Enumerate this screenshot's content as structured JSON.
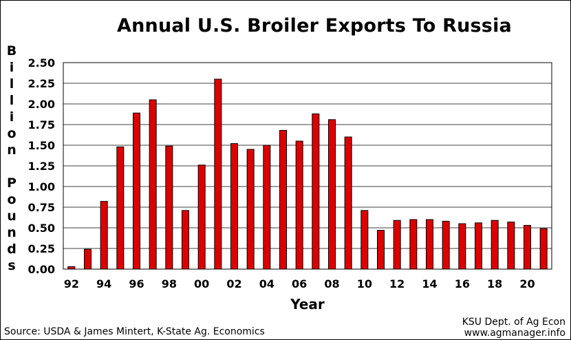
{
  "credit": {
    "line1": "KSU Dept. of Ag Econ",
    "line2": "www.agmanager.info"
  },
  "source": "Source: USDA & James Mintert, K-State Ag. Economics",
  "chart_data": {
    "type": "bar",
    "title": "Annual U.S. Broiler Exports To Russia",
    "xlabel": "Year",
    "ylabel": "Billion Pounds",
    "ylabel_words": [
      "Billion",
      "Pounds"
    ],
    "ylim": [
      0,
      2.5
    ],
    "yticks": [
      "0.00",
      "0.25",
      "0.50",
      "0.75",
      "1.00",
      "1.25",
      "1.50",
      "1.75",
      "2.00",
      "2.25",
      "2.50"
    ],
    "grid": true,
    "bar_color": "#dd0000",
    "categories": [
      "92",
      "93",
      "94",
      "95",
      "96",
      "97",
      "98",
      "99",
      "00",
      "01",
      "02",
      "03",
      "04",
      "05",
      "06",
      "07",
      "08",
      "09",
      "10",
      "11",
      "12",
      "13",
      "14",
      "15",
      "16",
      "17",
      "18",
      "19",
      "20",
      "21"
    ],
    "xtick_labels": [
      "92",
      "94",
      "96",
      "98",
      "00",
      "02",
      "04",
      "06",
      "08",
      "10",
      "12",
      "14",
      "16",
      "18",
      "20"
    ],
    "values": [
      0.03,
      0.24,
      0.82,
      1.48,
      1.89,
      2.05,
      1.49,
      0.71,
      1.26,
      2.3,
      1.52,
      1.45,
      1.5,
      1.68,
      1.55,
      1.88,
      1.81,
      1.6,
      0.71,
      0.47,
      0.59,
      0.6,
      0.6,
      0.58,
      0.55,
      0.56,
      0.59,
      0.57,
      0.53,
      0.49
    ]
  }
}
